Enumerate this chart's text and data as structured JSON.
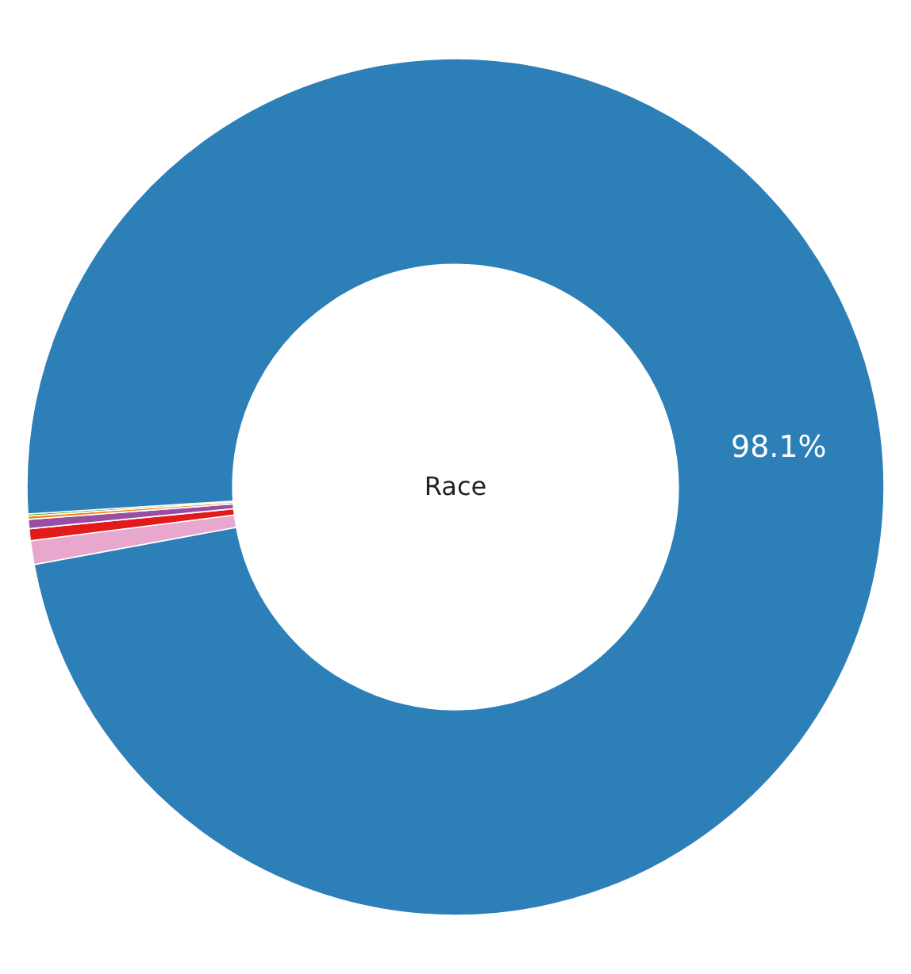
{
  "chart_data": {
    "type": "donut",
    "title": "Race",
    "categories": [
      null,
      null,
      null,
      null,
      null,
      null
    ],
    "values": [
      0.9,
      0.45,
      0.35,
      0.12,
      0.08,
      98.1
    ],
    "colors": [
      "#e8a8ce",
      "#e31a1c",
      "#984ea3",
      "#ff7f00",
      "#4daf4a",
      "#2d7fb8"
    ],
    "value_labels": [
      null,
      null,
      null,
      null,
      null,
      "98.1%"
    ],
    "legend": false
  }
}
